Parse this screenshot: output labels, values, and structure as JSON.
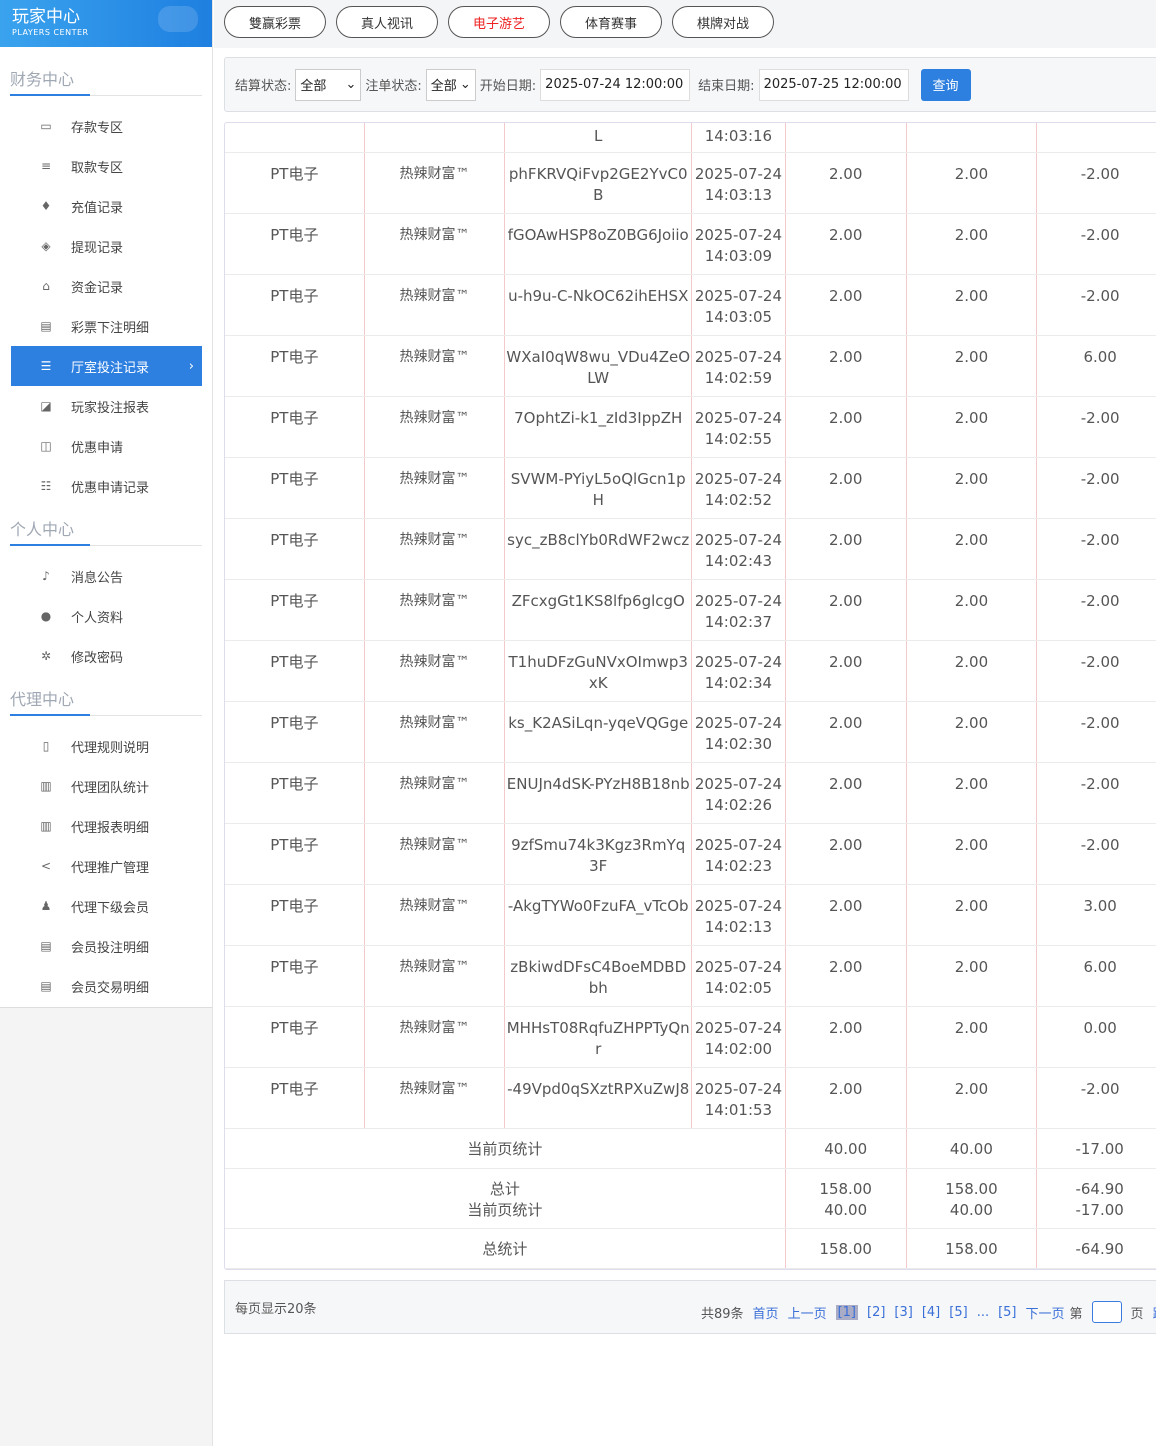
{
  "brand": {
    "title": "玩家中心",
    "subtitle": "PLAYERS CENTER"
  },
  "sidebar": {
    "finance": {
      "title": "财务中心",
      "items": [
        {
          "label": "存款专区",
          "icon": "card-icon",
          "g": "▭"
        },
        {
          "label": "取款专区",
          "icon": "cash-icon",
          "g": "≡"
        },
        {
          "label": "充值记录",
          "icon": "moneybag-icon",
          "g": "♦"
        },
        {
          "label": "提现记录",
          "icon": "wallet-icon",
          "g": "◈"
        },
        {
          "label": "资金记录",
          "icon": "bank-icon",
          "g": "⌂"
        },
        {
          "label": "彩票下注明细",
          "icon": "list-icon",
          "g": "▤"
        },
        {
          "label": "厅室投注记录",
          "icon": "list-icon",
          "g": "☰",
          "active": true
        },
        {
          "label": "玩家投注报表",
          "icon": "chart-icon",
          "g": "◪"
        },
        {
          "label": "优惠申请",
          "icon": "gift-icon",
          "g": "◫"
        },
        {
          "label": "优惠申请记录",
          "icon": "list-icon",
          "g": "☷"
        }
      ]
    },
    "personal": {
      "title": "个人中心",
      "items": [
        {
          "label": "消息公告",
          "icon": "bell-icon",
          "g": "♪"
        },
        {
          "label": "个人资料",
          "icon": "user-icon",
          "g": "●"
        },
        {
          "label": "修改密码",
          "icon": "gear-icon",
          "g": "✲"
        }
      ]
    },
    "agent": {
      "title": "代理中心",
      "items": [
        {
          "label": "代理规则说明",
          "icon": "file-icon",
          "g": "▯"
        },
        {
          "label": "代理团队统计",
          "icon": "book-icon",
          "g": "▥"
        },
        {
          "label": "代理报表明细",
          "icon": "book-icon",
          "g": "▥"
        },
        {
          "label": "代理推广管理",
          "icon": "share-icon",
          "g": "<"
        },
        {
          "label": "代理下级会员",
          "icon": "users-icon",
          "g": "♟"
        },
        {
          "label": "会员投注明细",
          "icon": "doc-icon",
          "g": "▤"
        },
        {
          "label": "会员交易明细",
          "icon": "doc-icon",
          "g": "▤"
        }
      ]
    }
  },
  "tabs": [
    {
      "label": "雙赢彩票"
    },
    {
      "label": "真人视讯"
    },
    {
      "label": "电子游艺",
      "active": true
    },
    {
      "label": "体育赛事"
    },
    {
      "label": "棋牌对战"
    }
  ],
  "filter": {
    "settle_label": "结算状态:",
    "settle_value": "全部",
    "bet_label": "注单状态:",
    "bet_value": "全部",
    "start_label": "开始日期:",
    "start_value": "2025-07-24 12:00:00",
    "end_label": "结束日期:",
    "end_value": "2025-07-25 12:00:00",
    "query": "查询"
  },
  "table": {
    "partial": {
      "id": "L",
      "time": "14:03:16"
    },
    "rows": [
      [
        "PT电子",
        "热辣财富™",
        "phFKRVQiFvp2GE2YvC0B",
        "2025-07-24 14:03:13",
        "2.00",
        "2.00",
        "-2.00"
      ],
      [
        "PT电子",
        "热辣财富™",
        "fGOAwHSP8oZ0BG6Joiio",
        "2025-07-24 14:03:09",
        "2.00",
        "2.00",
        "-2.00"
      ],
      [
        "PT电子",
        "热辣财富™",
        "u-h9u-C-NkOC62ihEHSX",
        "2025-07-24 14:03:05",
        "2.00",
        "2.00",
        "-2.00"
      ],
      [
        "PT电子",
        "热辣财富™",
        "WXaI0qW8wu_VDu4ZeOLW",
        "2025-07-24 14:02:59",
        "2.00",
        "2.00",
        "6.00"
      ],
      [
        "PT电子",
        "热辣财富™",
        "7OphtZi-k1_zId3IppZH",
        "2025-07-24 14:02:55",
        "2.00",
        "2.00",
        "-2.00"
      ],
      [
        "PT电子",
        "热辣财富™",
        "SVWM-PYiyL5oQlGcn1pH",
        "2025-07-24 14:02:52",
        "2.00",
        "2.00",
        "-2.00"
      ],
      [
        "PT电子",
        "热辣财富™",
        "syc_zB8clYb0RdWF2wcz",
        "2025-07-24 14:02:43",
        "2.00",
        "2.00",
        "-2.00"
      ],
      [
        "PT电子",
        "热辣财富™",
        "ZFcxgGt1KS8lfp6glcgO",
        "2025-07-24 14:02:37",
        "2.00",
        "2.00",
        "-2.00"
      ],
      [
        "PT电子",
        "热辣财富™",
        "T1huDFzGuNVxOImwp3xK",
        "2025-07-24 14:02:34",
        "2.00",
        "2.00",
        "-2.00"
      ],
      [
        "PT电子",
        "热辣财富™",
        "ks_K2ASiLqn-yqeVQGge",
        "2025-07-24 14:02:30",
        "2.00",
        "2.00",
        "-2.00"
      ],
      [
        "PT电子",
        "热辣财富™",
        "ENUJn4dSK-PYzH8B18nb",
        "2025-07-24 14:02:26",
        "2.00",
        "2.00",
        "-2.00"
      ],
      [
        "PT电子",
        "热辣财富™",
        "9zfSmu74k3Kgz3RmYq3F",
        "2025-07-24 14:02:23",
        "2.00",
        "2.00",
        "-2.00"
      ],
      [
        "PT电子",
        "热辣财富™",
        "-AkgTYWo0FzuFA_vTcOb",
        "2025-07-24 14:02:13",
        "2.00",
        "2.00",
        "3.00"
      ],
      [
        "PT电子",
        "热辣财富™",
        "zBkiwdDFsC4BoeMDBDbh",
        "2025-07-24 14:02:05",
        "2.00",
        "2.00",
        "6.00"
      ],
      [
        "PT电子",
        "热辣财富™",
        "MHHsT08RqfuZHPPTyQnr",
        "2025-07-24 14:02:00",
        "2.00",
        "2.00",
        "0.00"
      ],
      [
        "PT电子",
        "热辣财富™",
        "-49Vpd0qSXztRPXuZwJ8",
        "2025-07-24 14:01:53",
        "2.00",
        "2.00",
        "-2.00"
      ]
    ],
    "summary": [
      {
        "label": "当前页统计",
        "v": [
          "40.00",
          "40.00",
          "-17.00"
        ]
      },
      {
        "label": "总计\n当前页统计",
        "v": [
          "158.00\n40.00",
          "158.00\n40.00",
          "-64.90\n-17.00"
        ]
      },
      {
        "label": "总统计",
        "v": [
          "158.00",
          "158.00",
          "-64.90"
        ]
      }
    ]
  },
  "pager": {
    "per_page": "每页显示20条",
    "total": "共89条",
    "first": "首页",
    "prev": "上一页",
    "pages": [
      "[1]",
      "[2]",
      "[3]",
      "[4]",
      "[5]",
      "...",
      "[5]"
    ],
    "next": "下一页",
    "go_prefix": "第",
    "go_suffix": "页",
    "jump": "跳转"
  }
}
